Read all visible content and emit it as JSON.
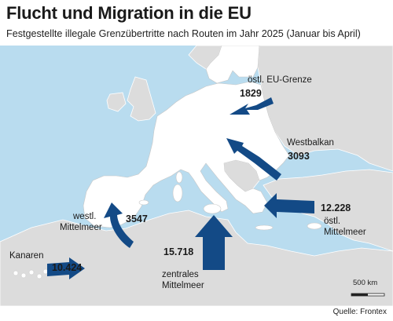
{
  "header": {
    "title": "Flucht und Migration in die EU",
    "subtitle": "Festgestellte illegale Grenzübertritte nach Routen im Jahr 2025 (Januar bis April)"
  },
  "routes": [
    {
      "id": "eu-east",
      "name": "östl. EU-Grenze",
      "value": "1829"
    },
    {
      "id": "westbalkan",
      "name": "Westbalkan",
      "value": "3093"
    },
    {
      "id": "east-med",
      "name_line1": "östl.",
      "name_line2": "Mittelmeer",
      "value": "12.228"
    },
    {
      "id": "central-med",
      "name_line1": "zentrales",
      "name_line2": "Mittelmeer",
      "value": "15.718"
    },
    {
      "id": "west-med",
      "name_line1": "westl.",
      "name_line2": "Mittelmeer",
      "value": "3547"
    },
    {
      "id": "canaries",
      "name": "Kanaren",
      "value": "10.424"
    }
  ],
  "scale": {
    "label": "500 km"
  },
  "source": "Quelle: Frontex",
  "colors": {
    "sea": "#b9dcef",
    "eu_land": "#ffffff",
    "non_eu_land": "#dcdcdc",
    "arrow": "#134a86"
  }
}
